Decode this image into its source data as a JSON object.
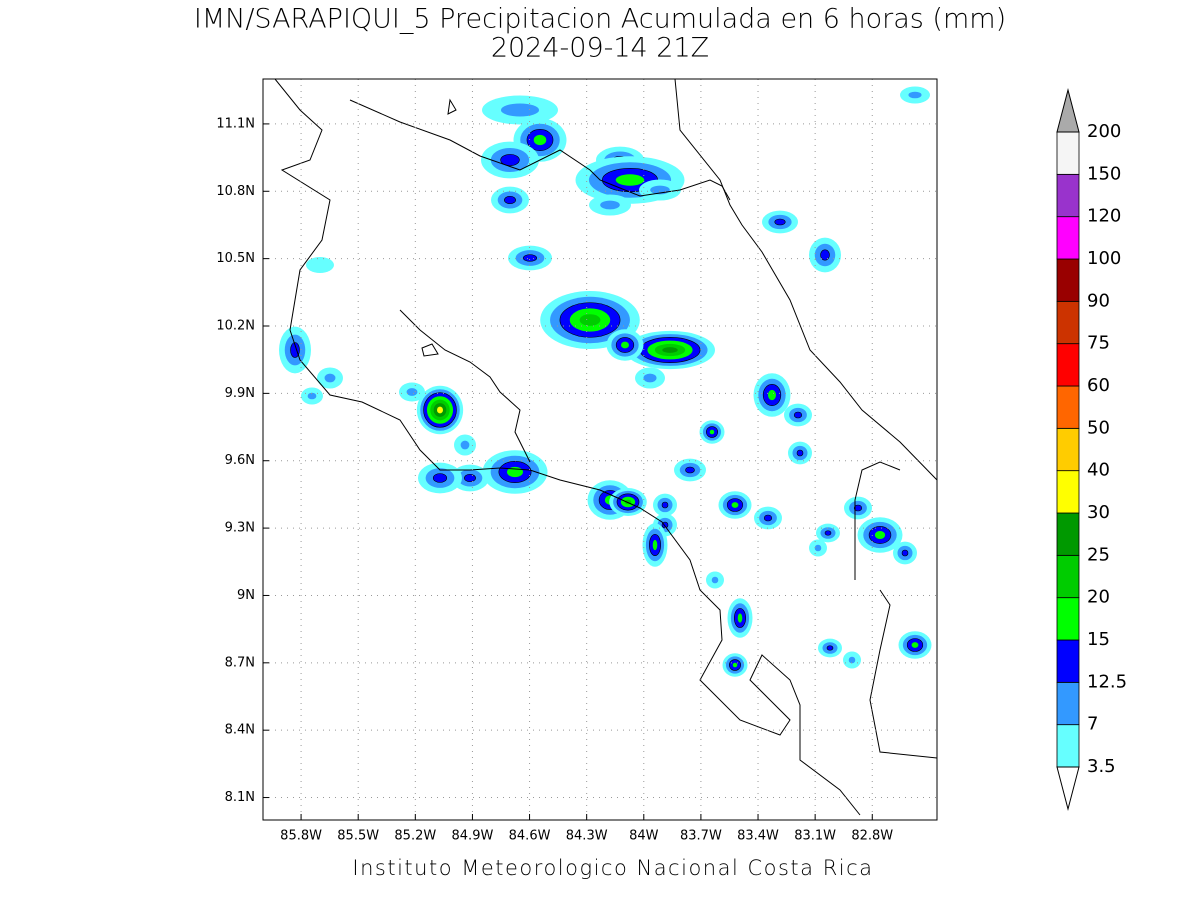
{
  "title": "IMN/SARAPIQUI_5 Precipitacion Acumulada en 6 horas (mm)",
  "subtitle": "2024-09-14 21Z",
  "footer": "Instituto Meteorologico Nacional Costa Rica",
  "map": {
    "xlim": [
      -86.0,
      -82.46
    ],
    "ylim": [
      8.0,
      11.3
    ],
    "grid": true,
    "xticks": [
      {
        "value": -85.8,
        "label": "85.8W"
      },
      {
        "value": -85.5,
        "label": "85.5W"
      },
      {
        "value": -85.2,
        "label": "85.2W"
      },
      {
        "value": -84.9,
        "label": "84.9W"
      },
      {
        "value": -84.6,
        "label": "84.6W"
      },
      {
        "value": -84.3,
        "label": "84.3W"
      },
      {
        "value": -84.0,
        "label": "84W"
      },
      {
        "value": -83.7,
        "label": "83.7W"
      },
      {
        "value": -83.4,
        "label": "83.4W"
      },
      {
        "value": -83.1,
        "label": "83.1W"
      },
      {
        "value": -82.8,
        "label": "82.8W"
      }
    ],
    "yticks": [
      {
        "value": 8.1,
        "label": "8.1N"
      },
      {
        "value": 8.4,
        "label": "8.4N"
      },
      {
        "value": 8.7,
        "label": "8.7N"
      },
      {
        "value": 9.0,
        "label": "9N"
      },
      {
        "value": 9.3,
        "label": "9.3N"
      },
      {
        "value": 9.6,
        "label": "9.6N"
      },
      {
        "value": 9.9,
        "label": "9.9N"
      },
      {
        "value": 10.2,
        "label": "10.2N"
      },
      {
        "value": 10.5,
        "label": "10.5N"
      },
      {
        "value": 10.8,
        "label": "10.8N"
      },
      {
        "value": 11.1,
        "label": "11.1N"
      }
    ]
  },
  "colorbar": {
    "levels": [
      3.5,
      7,
      12.5,
      15,
      20,
      25,
      30,
      40,
      50,
      60,
      75,
      90,
      100,
      120,
      150,
      200
    ],
    "colors": [
      "#66ffff",
      "#3399ff",
      "#0000ff",
      "#00ff00",
      "#00cc00",
      "#009900",
      "#ffff00",
      "#ffcc00",
      "#ff6600",
      "#ff0000",
      "#cc3300",
      "#990000",
      "#ff00ff",
      "#9933cc",
      "#f5f5f5"
    ],
    "under_color": "#ffffff",
    "over_color": "#aaaaaa"
  }
}
